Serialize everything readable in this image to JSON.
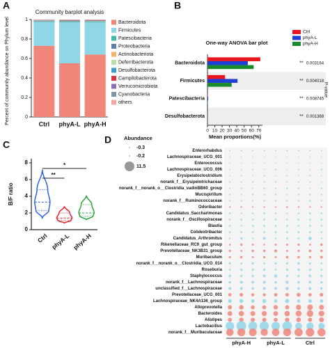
{
  "chart_data": [
    {
      "panel": "A",
      "type": "stacked_bar",
      "title": "Community barplot analysis",
      "ylabel": "Percent of community abundance on Phylum level",
      "categories": [
        "Ctrl",
        "phyA-L",
        "phyA-H"
      ],
      "ylim": [
        0,
        1
      ],
      "yticks": [
        0,
        0.2,
        0.4,
        0.6,
        0.8,
        1
      ],
      "series": [
        {
          "name": "Bacteroidota",
          "color": "#f0857a",
          "values": [
            0.73,
            0.55,
            0.64
          ]
        },
        {
          "name": "Firmicutes",
          "color": "#8fd6e8",
          "values": [
            0.245,
            0.42,
            0.33
          ]
        },
        {
          "name": "Patescibacteria",
          "color": "#46b8a8",
          "values": [
            0.005,
            0.008,
            0.007
          ]
        },
        {
          "name": "Proteobacteria",
          "color": "#5f7fa8",
          "values": [
            0.004,
            0.004,
            0.004
          ]
        },
        {
          "name": "Actinobacteriota",
          "color": "#f2b36b",
          "values": [
            0.002,
            0.002,
            0.002
          ]
        },
        {
          "name": "Deferribacterota",
          "color": "#b8e0a8",
          "values": [
            0.002,
            0.002,
            0.002
          ]
        },
        {
          "name": "Desulfobacterota",
          "color": "#3f9ec7",
          "values": [
            0.004,
            0.004,
            0.005
          ]
        },
        {
          "name": "Campilobacterota",
          "color": "#e0343d",
          "values": [
            0.002,
            0.003,
            0.003
          ]
        },
        {
          "name": "Verrucomicrobiota",
          "color": "#8b6fb0",
          "values": [
            0.001,
            0.001,
            0.001
          ]
        },
        {
          "name": "Cyanobacteria",
          "color": "#7e97a6",
          "values": [
            0.001,
            0.001,
            0.001
          ]
        },
        {
          "name": "others",
          "color": "#f4a6a0",
          "values": [
            0.004,
            0.005,
            0.005
          ]
        }
      ]
    },
    {
      "panel": "B",
      "type": "hbar",
      "title": "One-way ANOVA bar plot",
      "categories": [
        "Bacteroidota",
        "Firmicutes",
        "Patescibacteria",
        "Desulfobacterota"
      ],
      "xlabel": "Mean proportions(%)",
      "xlim": [
        0,
        75
      ],
      "xticks": [
        0,
        10,
        20,
        30,
        40,
        50,
        60,
        70
      ],
      "legend": "top-right",
      "series": [
        {
          "name": "Ctrl",
          "color": "#e8161f",
          "values": [
            72,
            24,
            0.5,
            0.3
          ]
        },
        {
          "name": "phyA-L",
          "color": "#1d3fd6",
          "values": [
            55,
            41,
            1,
            0.3
          ]
        },
        {
          "name": "phyA-H",
          "color": "#1a8a2e",
          "values": [
            63,
            33,
            0.5,
            0.3
          ]
        }
      ],
      "stars": [
        "**",
        "**",
        "**",
        "**"
      ],
      "p_values": [
        0.003164,
        0.004018,
        0.008745,
        0.001368
      ],
      "p_label": "P-value"
    },
    {
      "panel": "C",
      "type": "violin",
      "ylabel": "B/F ratio",
      "categories": [
        "Ctrl",
        "phyA-L",
        "phyA-H"
      ],
      "ylim": [
        0,
        8.5
      ],
      "yticks": [
        0,
        2,
        4,
        6,
        8
      ],
      "violins": [
        {
          "color": "#2e62e0",
          "min": 1.4,
          "q1": 2.3,
          "median": 3.3,
          "q3": 4.8,
          "max": 7.2
        },
        {
          "color": "#e5202a",
          "min": 0.8,
          "q1": 1.1,
          "median": 1.4,
          "q3": 2.0,
          "max": 2.8
        },
        {
          "color": "#2aa33a",
          "min": 1.2,
          "q1": 1.6,
          "median": 2.0,
          "q3": 3.0,
          "max": 4.1
        }
      ],
      "significance": [
        {
          "from": "Ctrl",
          "to": "phyA-L",
          "label": "**"
        },
        {
          "from": "Ctrl",
          "to": "phyA-H",
          "label": "*"
        }
      ]
    },
    {
      "panel": "D",
      "type": "bubble_grid",
      "legend_title": "Abundance",
      "size_legend": [
        -0.3,
        -0.2,
        11.5
      ],
      "sizelim": [
        -0.3,
        11.5
      ],
      "groups": [
        "phyA-H",
        "phyA-L",
        "Ctrl"
      ],
      "series": [
        {
          "name": "Enterorhabdus",
          "color": "#f0857a",
          "values": [
            [
              -0.3,
              -0.2,
              -0.3
            ],
            [
              -0.3,
              -0.3,
              -0.2
            ],
            [
              -0.2,
              -0.3,
              -0.3
            ]
          ]
        },
        {
          "name": "Lachnospiraceae_UCG_001",
          "color": "#8fd6e8",
          "values": [
            [
              -0.2,
              -0.3,
              -0.2
            ],
            [
              -0.3,
              -0.2,
              -0.3
            ],
            [
              -0.3,
              -0.3,
              -0.2
            ]
          ]
        },
        {
          "name": "Enterococcus",
          "color": "#8fd6e8",
          "values": [
            [
              -0.2,
              -0.2,
              -0.3
            ],
            [
              -0.2,
              -0.3,
              -0.2
            ],
            [
              -0.3,
              -0.2,
              -0.3
            ]
          ]
        },
        {
          "name": "Lachnospiraceae_UCG_006",
          "color": "#8fd6e8",
          "values": [
            [
              0.1,
              -0.2,
              0.2
            ],
            [
              -0.1,
              0.3,
              -0.2
            ],
            [
              0.2,
              -0.2,
              0.4
            ]
          ]
        },
        {
          "name": "Erysipelatoclostridium",
          "color": "#8fd6e8",
          "values": [
            [
              -0.1,
              0.2,
              -0.2
            ],
            [
              0.3,
              -0.1,
              0.1
            ],
            [
              -0.2,
              0.4,
              -0.1
            ]
          ]
        },
        {
          "name": "norank_f__Erysipelotrichaceae",
          "color": "#8fd6e8",
          "values": [
            [
              0.3,
              0.1,
              0.2
            ],
            [
              0.2,
              0.4,
              0.1
            ],
            [
              0.1,
              0.2,
              -0.1
            ]
          ]
        },
        {
          "name": "norank_f__norank_o__Clostridia_vadinBB60_group",
          "color": "#8fd6e8",
          "values": [
            [
              0.2,
              0.4,
              0.1
            ],
            [
              0.3,
              0.2,
              0.5
            ],
            [
              0.4,
              0.1,
              0.3
            ]
          ]
        },
        {
          "name": "Mucispirillum",
          "color": "#8fd6e8",
          "values": [
            [
              0.3,
              0.1,
              0.5
            ],
            [
              0.2,
              0.6,
              0.1
            ],
            [
              0.4,
              0.2,
              0.3
            ]
          ]
        },
        {
          "name": "norank_f__Ruminococcaceae",
          "color": "#8fd6e8",
          "values": [
            [
              0.4,
              0.3,
              0.2
            ],
            [
              0.5,
              0.3,
              0.4
            ],
            [
              0.3,
              0.6,
              0.2
            ]
          ]
        },
        {
          "name": "Odoribacter",
          "color": "#f0857a",
          "values": [
            [
              0.3,
              0.5,
              0.2
            ],
            [
              0.4,
              0.3,
              0.6
            ],
            [
              0.5,
              0.4,
              0.3
            ]
          ]
        },
        {
          "name": "Candidatus_Saccharimonas",
          "color": "#8fd6e8",
          "values": [
            [
              0.6,
              0.4,
              0.5
            ],
            [
              0.7,
              0.5,
              0.4
            ],
            [
              0.5,
              0.8,
              0.6
            ]
          ]
        },
        {
          "name": "norank_f__Oscillospiraceae",
          "color": "#8fd6e8",
          "values": [
            [
              0.5,
              0.7,
              0.6
            ],
            [
              0.6,
              0.8,
              0.5
            ],
            [
              0.7,
              0.6,
              0.9
            ]
          ]
        },
        {
          "name": "Blautia",
          "color": "#8fd6e8",
          "values": [
            [
              0.7,
              0.5,
              0.8
            ],
            [
              0.9,
              0.6,
              0.7
            ],
            [
              0.6,
              0.8,
              0.5
            ]
          ]
        },
        {
          "name": "Colidextribacter",
          "color": "#8fd6e8",
          "values": [
            [
              0.8,
              0.6,
              0.7
            ],
            [
              0.7,
              0.9,
              0.8
            ],
            [
              0.9,
              0.7,
              0.6
            ]
          ]
        },
        {
          "name": "Candidatus_Arthromitus",
          "color": "#8fd6e8",
          "values": [
            [
              0.4,
              1.2,
              0.5
            ],
            [
              1.8,
              0.6,
              0.9
            ],
            [
              0.7,
              2.6,
              0.5
            ]
          ]
        },
        {
          "name": "Rikenellaceae_RC9_gut_group",
          "color": "#f0857a",
          "values": [
            [
              0.6,
              1.4,
              0.8
            ],
            [
              0.5,
              0.9,
              1.1
            ],
            [
              1.3,
              0.7,
              1.6
            ]
          ]
        },
        {
          "name": "Prevotellaceae_NK3B31_group",
          "color": "#f0857a",
          "values": [
            [
              1.2,
              0.8,
              1.6
            ],
            [
              1.5,
              2.2,
              0.9
            ],
            [
              1.1,
              1.8,
              1.4
            ]
          ]
        },
        {
          "name": "Muribaculum",
          "color": "#f0857a",
          "values": [
            [
              1.1,
              1.5,
              0.9
            ],
            [
              1.3,
              1.0,
              1.7
            ],
            [
              1.6,
              1.2,
              1.9
            ]
          ]
        },
        {
          "name": "norank_f__norank_o__Clostridia_UCG_014",
          "color": "#8fd6e8",
          "values": [
            [
              1.0,
              0.8,
              1.3
            ],
            [
              0.9,
              1.2,
              1.1
            ],
            [
              1.4,
              1.0,
              0.8
            ]
          ]
        },
        {
          "name": "Roseburia",
          "color": "#8fd6e8",
          "values": [
            [
              0.9,
              1.3,
              1.1
            ],
            [
              1.2,
              0.8,
              1.0
            ],
            [
              1.3,
              1.1,
              0.9
            ]
          ]
        },
        {
          "name": "Staphylococcus",
          "color": "#8fd6e8",
          "values": [
            [
              1.4,
              1.0,
              1.2
            ],
            [
              1.8,
              2.4,
              1.3
            ],
            [
              1.1,
              1.6,
              1.0
            ]
          ]
        },
        {
          "name": "norank_f__Lachnospiraceae",
          "color": "#8fd6e8",
          "values": [
            [
              1.6,
              2.1,
              1.8
            ],
            [
              1.9,
              1.5,
              2.2
            ],
            [
              1.4,
              1.7,
              1.3
            ]
          ]
        },
        {
          "name": "unclassified_f__Lachnospiraceae",
          "color": "#8fd6e8",
          "values": [
            [
              1.8,
              2.0,
              1.5
            ],
            [
              2.1,
              1.7,
              2.4
            ],
            [
              1.6,
              1.9,
              1.4
            ]
          ]
        },
        {
          "name": "Prevotellaceae_UCG_001",
          "color": "#f0857a",
          "values": [
            [
              2.6,
              3.2,
              2.4
            ],
            [
              2.2,
              2.8,
              3.0
            ],
            [
              3.4,
              2.7,
              3.1
            ]
          ]
        },
        {
          "name": "Lachnospiraceae_NK4A136_group",
          "color": "#8fd6e8",
          "values": [
            [
              3.1,
              3.6,
              2.8
            ],
            [
              3.4,
              2.9,
              3.8
            ],
            [
              2.5,
              3.0,
              2.7
            ]
          ]
        },
        {
          "name": "Alloprevotella",
          "color": "#f0857a",
          "values": [
            [
              3.8,
              4.4,
              3.5
            ],
            [
              3.6,
              4.1,
              3.9
            ],
            [
              5.2,
              5.8,
              4.9
            ]
          ]
        },
        {
          "name": "Bacteroides",
          "color": "#f0857a",
          "values": [
            [
              4.6,
              5.4,
              4.9
            ],
            [
              5.1,
              4.7,
              5.5
            ],
            [
              6.4,
              7.1,
              6.0
            ]
          ]
        },
        {
          "name": "Alistipes",
          "color": "#f0857a",
          "values": [
            [
              3.6,
              4.2,
              3.9
            ],
            [
              3.8,
              3.4,
              4.1
            ],
            [
              4.5,
              4.0,
              4.8
            ]
          ]
        },
        {
          "name": "Lactobacillus",
          "color": "#8fd6e8",
          "values": [
            [
              9.8,
              11.5,
              10.4
            ],
            [
              10.9,
              9.6,
              11.2
            ],
            [
              7.4,
              8.1,
              6.9
            ]
          ]
        },
        {
          "name": "norank_f__Muribaculaceae",
          "color": "#f0857a",
          "values": [
            [
              8.2,
              9.0,
              8.6
            ],
            [
              7.9,
              8.4,
              8.8
            ],
            [
              9.3,
              9.8,
              9.1
            ]
          ]
        }
      ]
    }
  ]
}
